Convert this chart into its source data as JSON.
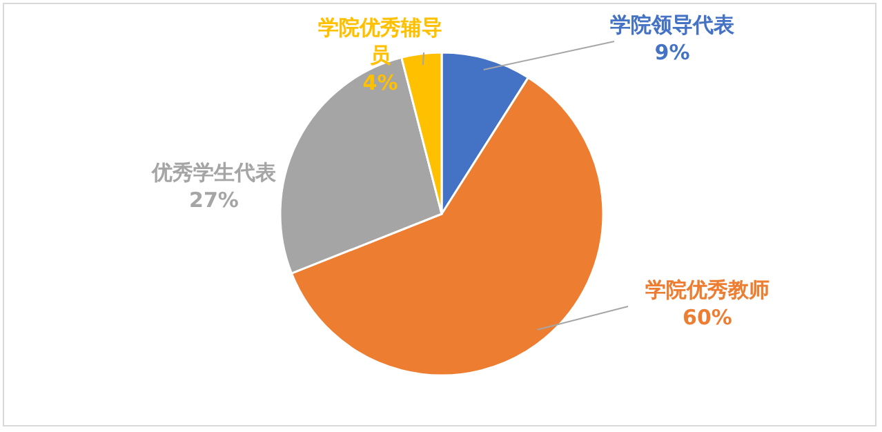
{
  "chart_data": {
    "type": "pie",
    "categories": [
      "学院领导代表",
      "学院优秀教师",
      "优秀学生代表",
      "学院优秀辅导员"
    ],
    "values": [
      9,
      60,
      27,
      4
    ],
    "colors": [
      "#4472c4",
      "#ed7d31",
      "#a5a5a5",
      "#ffc000"
    ],
    "value_labels": [
      "9%",
      "60%",
      "27%",
      "4%"
    ]
  }
}
